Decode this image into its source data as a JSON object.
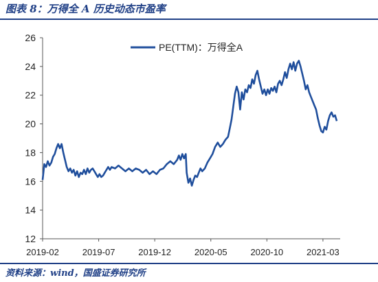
{
  "header": {
    "title": "图表 8：万得全 A 历史动态市盈率"
  },
  "footer": {
    "source": "资料来源：wind，国盛证券研究所"
  },
  "chart_data": {
    "type": "line",
    "title": "",
    "xlabel": "",
    "ylabel": "",
    "ylim": [
      12,
      26
    ],
    "yticks": [
      12,
      14,
      16,
      18,
      20,
      22,
      24,
      26
    ],
    "xticks": [
      "2019-02",
      "2019-07",
      "2019-12",
      "2020-05",
      "2020-10",
      "2021-03"
    ],
    "legend_position": "top-center",
    "line_color": "#1f4e9c",
    "series": [
      {
        "name": "PE(TTM)：万得全A",
        "points": [
          [
            0,
            16.1
          ],
          [
            0.1,
            17.2
          ],
          [
            0.2,
            17.0
          ],
          [
            0.3,
            17.4
          ],
          [
            0.4,
            17.1
          ],
          [
            0.5,
            17.3
          ],
          [
            0.6,
            17.7
          ],
          [
            0.7,
            17.9
          ],
          [
            0.8,
            18.3
          ],
          [
            0.9,
            18.6
          ],
          [
            1.0,
            18.3
          ],
          [
            1.1,
            18.6
          ],
          [
            1.2,
            18.0
          ],
          [
            1.3,
            17.5
          ],
          [
            1.4,
            17.0
          ],
          [
            1.5,
            16.7
          ],
          [
            1.6,
            16.9
          ],
          [
            1.7,
            16.6
          ],
          [
            1.8,
            16.8
          ],
          [
            1.9,
            16.4
          ],
          [
            2.0,
            16.7
          ],
          [
            2.1,
            16.3
          ],
          [
            2.2,
            16.6
          ],
          [
            2.3,
            16.5
          ],
          [
            2.4,
            16.8
          ],
          [
            2.5,
            16.5
          ],
          [
            2.6,
            16.9
          ],
          [
            2.7,
            16.6
          ],
          [
            2.8,
            16.8
          ],
          [
            2.9,
            16.9
          ],
          [
            3.0,
            16.7
          ],
          [
            3.1,
            16.5
          ],
          [
            3.2,
            16.3
          ],
          [
            3.3,
            16.5
          ],
          [
            3.4,
            16.3
          ],
          [
            3.5,
            16.4
          ],
          [
            3.6,
            16.6
          ],
          [
            3.7,
            16.8
          ],
          [
            3.8,
            17.0
          ],
          [
            3.9,
            16.8
          ],
          [
            4.0,
            17.0
          ],
          [
            4.2,
            16.9
          ],
          [
            4.4,
            17.1
          ],
          [
            4.6,
            16.9
          ],
          [
            4.8,
            16.7
          ],
          [
            5.0,
            16.9
          ],
          [
            5.2,
            16.7
          ],
          [
            5.4,
            16.9
          ],
          [
            5.6,
            16.8
          ],
          [
            5.8,
            16.6
          ],
          [
            6.0,
            16.8
          ],
          [
            6.2,
            16.5
          ],
          [
            6.4,
            16.7
          ],
          [
            6.6,
            16.5
          ],
          [
            6.8,
            16.8
          ],
          [
            7.0,
            16.9
          ],
          [
            7.2,
            17.2
          ],
          [
            7.4,
            17.4
          ],
          [
            7.6,
            17.2
          ],
          [
            7.8,
            17.5
          ],
          [
            7.9,
            17.8
          ],
          [
            8.0,
            17.5
          ],
          [
            8.1,
            17.9
          ],
          [
            8.2,
            17.6
          ],
          [
            8.3,
            17.9
          ],
          [
            8.35,
            16.6
          ],
          [
            8.45,
            15.9
          ],
          [
            8.55,
            16.2
          ],
          [
            8.65,
            15.7
          ],
          [
            8.75,
            16.1
          ],
          [
            8.85,
            16.4
          ],
          [
            8.95,
            16.3
          ],
          [
            9.05,
            16.6
          ],
          [
            9.15,
            16.9
          ],
          [
            9.25,
            16.7
          ],
          [
            9.4,
            16.9
          ],
          [
            9.55,
            17.3
          ],
          [
            9.7,
            17.6
          ],
          [
            9.85,
            17.9
          ],
          [
            10.0,
            18.4
          ],
          [
            10.15,
            18.7
          ],
          [
            10.3,
            18.4
          ],
          [
            10.45,
            18.6
          ],
          [
            10.6,
            18.9
          ],
          [
            10.75,
            19.1
          ],
          [
            10.85,
            19.7
          ],
          [
            10.95,
            20.3
          ],
          [
            11.05,
            21.2
          ],
          [
            11.15,
            22.1
          ],
          [
            11.25,
            22.6
          ],
          [
            11.35,
            22.2
          ],
          [
            11.45,
            21.0
          ],
          [
            11.55,
            22.2
          ],
          [
            11.65,
            21.7
          ],
          [
            11.75,
            22.4
          ],
          [
            11.85,
            22.2
          ],
          [
            11.95,
            22.7
          ],
          [
            12.05,
            22.5
          ],
          [
            12.15,
            23.1
          ],
          [
            12.25,
            22.8
          ],
          [
            12.35,
            23.4
          ],
          [
            12.45,
            23.7
          ],
          [
            12.55,
            23.1
          ],
          [
            12.65,
            22.6
          ],
          [
            12.75,
            22.1
          ],
          [
            12.85,
            22.4
          ],
          [
            12.95,
            22.0
          ],
          [
            13.05,
            22.4
          ],
          [
            13.15,
            22.1
          ],
          [
            13.25,
            22.5
          ],
          [
            13.35,
            22.3
          ],
          [
            13.45,
            22.6
          ],
          [
            13.55,
            22.2
          ],
          [
            13.65,
            22.8
          ],
          [
            13.75,
            23.0
          ],
          [
            13.85,
            22.7
          ],
          [
            13.95,
            23.1
          ],
          [
            14.05,
            23.6
          ],
          [
            14.15,
            23.2
          ],
          [
            14.25,
            23.8
          ],
          [
            14.35,
            24.2
          ],
          [
            14.45,
            23.8
          ],
          [
            14.55,
            24.3
          ],
          [
            14.65,
            23.7
          ],
          [
            14.75,
            24.2
          ],
          [
            14.85,
            24.4
          ],
          [
            14.95,
            24.0
          ],
          [
            15.05,
            23.5
          ],
          [
            15.15,
            23.0
          ],
          [
            15.25,
            22.4
          ],
          [
            15.35,
            22.7
          ],
          [
            15.45,
            22.2
          ],
          [
            15.55,
            21.9
          ],
          [
            15.65,
            21.6
          ],
          [
            15.75,
            21.3
          ],
          [
            15.85,
            21.0
          ],
          [
            15.95,
            20.4
          ],
          [
            16.05,
            19.9
          ],
          [
            16.15,
            19.5
          ],
          [
            16.25,
            19.4
          ],
          [
            16.35,
            19.8
          ],
          [
            16.45,
            19.6
          ],
          [
            16.55,
            20.2
          ],
          [
            16.65,
            20.6
          ],
          [
            16.75,
            20.8
          ],
          [
            16.85,
            20.5
          ],
          [
            16.95,
            20.6
          ],
          [
            17.05,
            20.2
          ]
        ]
      }
    ]
  }
}
